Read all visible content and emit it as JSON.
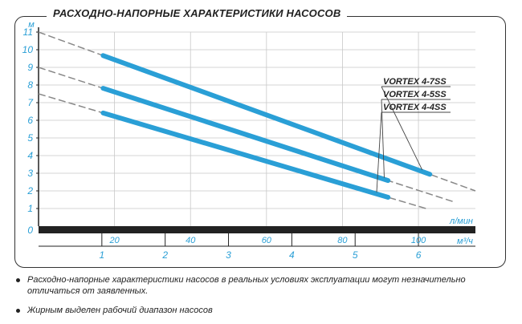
{
  "chart_data": {
    "type": "line",
    "title": "РАСХОДНО-НАПОРНЫЕ ХАРАКТЕРИСТИКИ НАСОСОВ",
    "ylabel": "м",
    "xlabel": "л/мин",
    "x2label": "м³/ч",
    "ylim": [
      0,
      11
    ],
    "xlim": [
      0,
      115
    ],
    "y_ticks": [
      1,
      2,
      3,
      4,
      5,
      6,
      7,
      8,
      9,
      10,
      11
    ],
    "x_ticks": [
      20,
      40,
      60,
      80,
      100
    ],
    "x2_ticks": [
      1,
      2,
      3,
      4,
      5,
      6
    ],
    "origin_label": "0",
    "series": [
      {
        "name": "VORTEX 4-7SS",
        "x": [
          0,
          115
        ],
        "y": [
          11.0,
          2.0
        ],
        "working_range": [
          17,
          103
        ]
      },
      {
        "name": "VORTEX 4-5SS",
        "x": [
          0,
          109
        ],
        "y": [
          9.0,
          1.4
        ],
        "working_range": [
          17,
          92
        ]
      },
      {
        "name": "VORTEX 4-4SS",
        "x": [
          0,
          102
        ],
        "y": [
          7.5,
          1.0
        ],
        "working_range": [
          17,
          92
        ]
      }
    ],
    "colors": {
      "working": "#2a9fd6",
      "extension": "#888888",
      "axis": "#222222",
      "ticks": "#2a9fd6"
    }
  },
  "notes": [
    "Расходно-напорные характеристики насосов в реальных условиях эксплуатации могут незначительно отличаться от заявленных.",
    "Жирным выделен рабочий диапазон насосов"
  ]
}
